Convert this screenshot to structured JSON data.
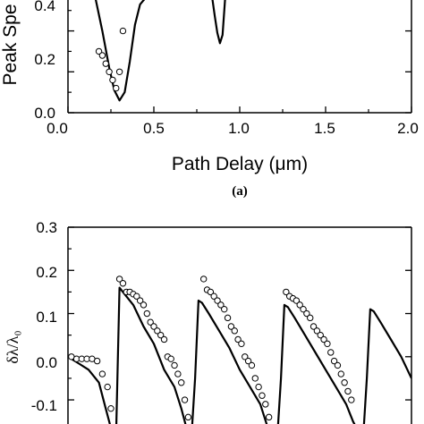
{
  "chart_data": [
    {
      "type": "line",
      "panel_label": "(a)",
      "xlabel": "Path Delay (μm)",
      "ylabel": "Peak Spe",
      "xlim": [
        0.0,
        2.0
      ],
      "ylim": [
        0.0,
        0.56
      ],
      "x_ticks": [
        "0.0",
        "0.5",
        "1.0",
        "1.5",
        "2.0"
      ],
      "y_ticks": [
        "0.0",
        "0.2",
        "0.4"
      ],
      "series": [
        {
          "style": "line",
          "x": [
            0.16,
            0.2,
            0.24,
            0.27,
            0.3,
            0.33,
            0.36,
            0.39,
            0.42,
            0.45,
            0.84,
            0.855,
            0.87,
            0.885,
            0.9,
            0.915
          ],
          "y": [
            0.56,
            0.4,
            0.22,
            0.11,
            0.06,
            0.1,
            0.25,
            0.43,
            0.53,
            0.56,
            0.56,
            0.47,
            0.39,
            0.34,
            0.38,
            0.56
          ]
        },
        {
          "style": "markers",
          "x": [
            0.18,
            0.2,
            0.22,
            0.24,
            0.26,
            0.28,
            0.3,
            0.32
          ],
          "y": [
            0.3,
            0.28,
            0.24,
            0.2,
            0.16,
            0.12,
            0.2,
            0.4
          ]
        }
      ]
    },
    {
      "type": "line",
      "panel_label": "",
      "xlabel": "",
      "ylabel": "δλ/λ₀",
      "xlim": [
        0.0,
        2.0
      ],
      "ylim": [
        -0.16,
        0.3
      ],
      "y_ticks": [
        "0.3",
        "0.2",
        "0.1",
        "0.0",
        "-0.1"
      ],
      "series": [
        {
          "style": "line",
          "x": [
            0.0,
            0.06,
            0.12,
            0.18,
            0.22,
            0.26,
            0.28,
            0.3,
            0.32,
            0.38,
            0.44,
            0.5,
            0.56,
            0.62,
            0.66,
            0.7,
            0.72,
            0.74,
            0.76,
            0.78,
            0.82,
            0.88,
            0.94,
            1.0,
            1.06,
            1.12,
            1.16,
            1.2,
            1.22,
            1.24,
            1.26,
            1.28,
            1.32,
            1.38,
            1.44,
            1.5,
            1.56,
            1.62,
            1.66,
            1.7,
            1.72,
            1.74,
            1.76,
            1.78,
            1.82,
            1.88,
            1.94,
            2.0
          ],
          "y": [
            0.0,
            -0.015,
            -0.03,
            -0.06,
            -0.12,
            -0.18,
            -0.18,
            0.16,
            0.15,
            0.12,
            0.07,
            0.03,
            -0.03,
            -0.07,
            -0.12,
            -0.18,
            -0.18,
            -0.05,
            0.13,
            0.125,
            0.1,
            0.06,
            0.02,
            -0.03,
            -0.07,
            -0.11,
            -0.16,
            -0.18,
            -0.18,
            -0.05,
            0.12,
            0.115,
            0.09,
            0.05,
            0.01,
            -0.03,
            -0.07,
            -0.11,
            -0.15,
            -0.18,
            -0.18,
            -0.05,
            0.11,
            0.105,
            0.08,
            0.04,
            0.0,
            -0.05
          ]
        },
        {
          "style": "markers",
          "x": [
            0.02,
            0.05,
            0.08,
            0.11,
            0.14,
            0.17,
            0.2,
            0.23,
            0.25,
            0.3,
            0.32,
            0.34,
            0.36,
            0.38,
            0.4,
            0.42,
            0.44,
            0.46,
            0.48,
            0.5,
            0.52,
            0.54,
            0.56,
            0.58,
            0.6,
            0.62,
            0.64,
            0.66,
            0.68,
            0.7,
            0.79,
            0.81,
            0.83,
            0.85,
            0.87,
            0.89,
            0.91,
            0.93,
            0.95,
            0.97,
            0.99,
            1.01,
            1.03,
            1.05,
            1.07,
            1.09,
            1.11,
            1.13,
            1.15,
            1.17,
            1.27,
            1.29,
            1.31,
            1.33,
            1.35,
            1.37,
            1.39,
            1.41,
            1.43,
            1.45,
            1.47,
            1.49,
            1.51,
            1.53,
            1.55,
            1.57,
            1.59,
            1.61,
            1.63,
            1.65
          ],
          "y": [
            0.0,
            -0.005,
            -0.005,
            -0.005,
            -0.005,
            -0.01,
            -0.04,
            -0.07,
            -0.12,
            0.18,
            0.17,
            0.15,
            0.15,
            0.145,
            0.14,
            0.13,
            0.12,
            0.1,
            0.08,
            0.07,
            0.06,
            0.05,
            0.04,
            0.0,
            -0.005,
            -0.02,
            -0.04,
            -0.06,
            -0.1,
            -0.14,
            0.18,
            0.155,
            0.15,
            0.14,
            0.13,
            0.12,
            0.11,
            0.09,
            0.07,
            0.06,
            0.04,
            0.03,
            0.0,
            -0.01,
            -0.02,
            -0.05,
            -0.07,
            -0.09,
            -0.11,
            -0.14,
            0.15,
            0.14,
            0.135,
            0.13,
            0.12,
            0.11,
            0.1,
            0.09,
            0.07,
            0.06,
            0.05,
            0.04,
            0.03,
            0.01,
            -0.01,
            -0.02,
            -0.04,
            -0.06,
            -0.08,
            -0.1
          ]
        }
      ]
    }
  ]
}
